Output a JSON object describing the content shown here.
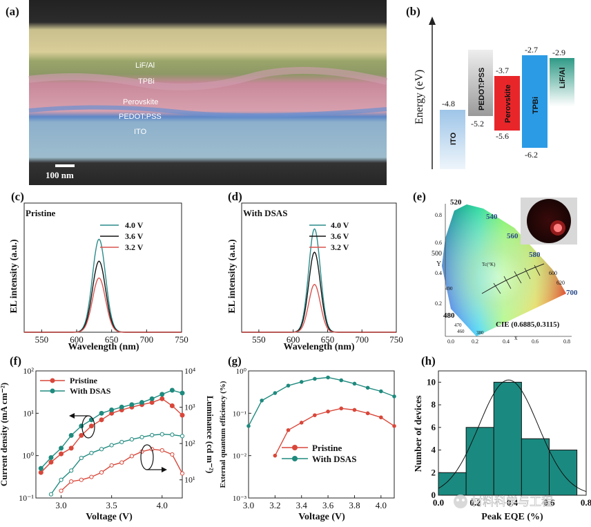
{
  "panels": {
    "a": {
      "tag": "(a)",
      "layers": [
        "LiF/Al",
        "TPBi",
        "Perovskite",
        "PEDOT:PSS",
        "ITO"
      ],
      "scale_bar": "100 nm"
    },
    "b": {
      "tag": "(b)",
      "ylabel": "Energy (eV)",
      "bars": [
        {
          "name": "ITO",
          "top": "-4.8",
          "bottom": "",
          "color": "#9ec5e8"
        },
        {
          "name": "PEDOT:PSS",
          "top": "",
          "bottom": "-5.2",
          "color": "#c8c8c8"
        },
        {
          "name": "Perovskite",
          "top": "-3.7",
          "bottom": "-5.6",
          "color": "#e8262a"
        },
        {
          "name": "TPBi",
          "top": "-2.7",
          "bottom": "-6.2",
          "color": "#2b9be6"
        },
        {
          "name": "LiF/Al",
          "top": "-2.9",
          "bottom": "",
          "color": "#3aa897"
        }
      ]
    },
    "c": {
      "tag": "(c)",
      "note": "Pristine"
    },
    "d": {
      "tag": "(d)",
      "note": "With DSAS"
    },
    "e": {
      "tag": "(e)",
      "cie_label": "CIE (0.6885,0.3115)",
      "tc_label": "Tc(°K)",
      "wavelengths": [
        "520",
        "540",
        "560",
        "580",
        "600",
        "620",
        "700",
        "500",
        "490",
        "480",
        "470",
        "460",
        "380"
      ],
      "xticks": [
        "0.0",
        "0.2",
        "0.4",
        "0.6",
        "0.8"
      ],
      "yticks": [
        "0.2",
        "0.4",
        "0.6",
        "0.8"
      ],
      "xlabel": "x",
      "ylabel": "Y"
    },
    "f": {
      "tag": "(f)"
    },
    "g": {
      "tag": "(g)"
    },
    "h": {
      "tag": "(h)"
    }
  },
  "watermark": "材料科学与工程",
  "colors": {
    "v40": "#2a8a8a",
    "v36": "#111111",
    "v32": "#d9534f",
    "pristine": "#d9473a",
    "dsas": "#1f8a7e",
    "bar": "#1a8a80"
  },
  "chart_data": [
    {
      "id": "c",
      "type": "line",
      "xlabel": "Wavelength (nm)",
      "ylabel": "EL intensity (a.u.)",
      "xticks": [
        "550",
        "600",
        "650",
        "700",
        "750"
      ],
      "xlim": [
        525,
        750
      ],
      "legend": [
        "4.0 V",
        "3.6 V",
        "3.2 V"
      ],
      "peak_nm": 632,
      "fwhm_nm": 22,
      "series": [
        {
          "name": "4.0 V",
          "peak": 0.72
        },
        {
          "name": "3.6 V",
          "peak": 0.55
        },
        {
          "name": "3.2 V",
          "peak": 0.42
        }
      ]
    },
    {
      "id": "d",
      "type": "line",
      "xlabel": "Wavelength (nm)",
      "ylabel": "EL intensity (a.u.)",
      "xticks": [
        "550",
        "600",
        "650",
        "700",
        "750"
      ],
      "xlim": [
        525,
        750
      ],
      "legend": [
        "4.0 V",
        "3.6 V",
        "3.2 V"
      ],
      "peak_nm": 631,
      "fwhm_nm": 20,
      "series": [
        {
          "name": "4.0 V",
          "peak": 0.8
        },
        {
          "name": "3.6 V",
          "peak": 0.62
        },
        {
          "name": "3.2 V",
          "peak": 0.37
        }
      ]
    },
    {
      "id": "f",
      "type": "line",
      "xlabel": "Voltage (V)",
      "ylabel": "Current density (mA cm⁻²)",
      "y2label": "Luminance (cd m⁻²)",
      "xticks": [
        "3.0",
        "3.5",
        "4.0"
      ],
      "xlim": [
        2.75,
        4.2
      ],
      "yticks": [
        "10⁻¹",
        "10⁰",
        "10¹",
        "10²"
      ],
      "ylim_log": [
        -1,
        2
      ],
      "y2ticks": [
        "10¹",
        "10²",
        "10³",
        "10⁴"
      ],
      "y2lim_log": [
        0.5,
        4
      ],
      "legend": [
        "Pristine",
        "With DSAS"
      ],
      "x": [
        2.8,
        2.9,
        3.0,
        3.1,
        3.2,
        3.3,
        3.4,
        3.5,
        3.6,
        3.7,
        3.8,
        3.9,
        4.0,
        4.1,
        4.2
      ],
      "series": [
        {
          "name": "Pristine",
          "kind": "current",
          "values": [
            0.4,
            0.7,
            1.1,
            1.5,
            3,
            5,
            7,
            10,
            12,
            14,
            16,
            18,
            22,
            15,
            9
          ]
        },
        {
          "name": "With DSAS",
          "kind": "current",
          "values": [
            0.5,
            0.9,
            1.5,
            3,
            5,
            7,
            10,
            12,
            14,
            16,
            18,
            22,
            28,
            35,
            30
          ]
        },
        {
          "name": "Pristine",
          "kind": "luminance",
          "x": [
            3.0,
            3.1,
            3.2,
            3.3,
            3.4,
            3.5,
            3.6,
            3.7,
            3.8,
            3.9,
            4.0,
            4.1,
            4.2
          ],
          "values": [
            5,
            9,
            10,
            12,
            16,
            25,
            30,
            45,
            60,
            70,
            65,
            50,
            15
          ]
        },
        {
          "name": "With DSAS",
          "kind": "luminance",
          "x": [
            2.9,
            3.0,
            3.1,
            3.2,
            3.3,
            3.4,
            3.5,
            3.6,
            3.7,
            3.8,
            3.9,
            4.0,
            4.1,
            4.2
          ],
          "values": [
            4,
            10,
            18,
            40,
            55,
            70,
            90,
            110,
            130,
            150,
            170,
            180,
            175,
            160
          ]
        }
      ]
    },
    {
      "id": "g",
      "type": "line",
      "xlabel": "Voltage (V)",
      "ylabel": "External quantum efficiency (%)",
      "xticks": [
        "3.0",
        "3.2",
        "3.4",
        "3.6",
        "3.8",
        "4.0"
      ],
      "xlim": [
        3.0,
        4.1
      ],
      "yticks": [
        "10⁻³",
        "10⁻²",
        "10⁻¹",
        "10⁰"
      ],
      "ylim_log": [
        -3,
        0
      ],
      "legend": [
        "Pristine",
        "With DSAS"
      ],
      "series": [
        {
          "name": "Pristine",
          "x": [
            3.2,
            3.3,
            3.4,
            3.5,
            3.6,
            3.7,
            3.8,
            3.9,
            4.0,
            4.1
          ],
          "values": [
            0.01,
            0.04,
            0.06,
            0.09,
            0.11,
            0.13,
            0.12,
            0.1,
            0.08,
            0.05
          ]
        },
        {
          "name": "With DSAS",
          "x": [
            3.0,
            3.1,
            3.2,
            3.3,
            3.4,
            3.5,
            3.6,
            3.7,
            3.8,
            3.9,
            4.0,
            4.1
          ],
          "values": [
            0.05,
            0.2,
            0.3,
            0.45,
            0.55,
            0.65,
            0.7,
            0.6,
            0.5,
            0.4,
            0.33,
            0.25
          ]
        }
      ]
    },
    {
      "id": "h",
      "type": "bar",
      "xlabel": "Peak EQE (%)",
      "ylabel": "Number of devices",
      "xticks": [
        "0.0",
        "0.2",
        "0.4",
        "0.6",
        "0.8"
      ],
      "xlim": [
        0,
        0.8
      ],
      "yticks": [
        "0",
        "2",
        "4",
        "6",
        "8",
        "10"
      ],
      "ylim": [
        0,
        11
      ],
      "bins": [
        [
          0.0,
          0.15
        ],
        [
          0.15,
          0.3
        ],
        [
          0.3,
          0.45
        ],
        [
          0.45,
          0.6
        ],
        [
          0.6,
          0.75
        ]
      ],
      "values": [
        2,
        6,
        10,
        5,
        4
      ],
      "fit": {
        "mean": 0.38,
        "sigma": 0.16,
        "amp": 10.2
      }
    }
  ]
}
